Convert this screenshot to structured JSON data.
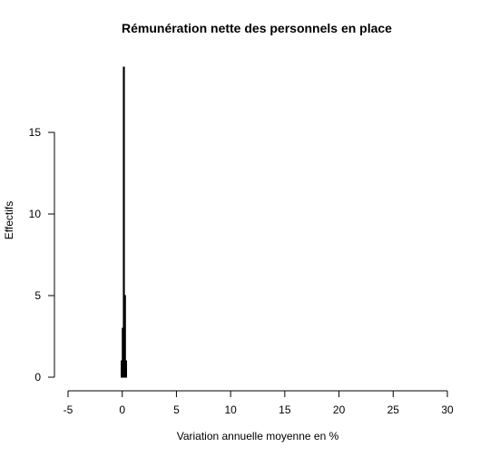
{
  "chart_data": {
    "type": "bar",
    "title": "Rémunération nette des personnels en place",
    "xlabel": "Variation annuelle moyenne en %",
    "ylabel": "Effectifs",
    "xlim": [
      -5,
      30
    ],
    "ylim": [
      0,
      19
    ],
    "x_ticks": [
      -5,
      0,
      5,
      10,
      15,
      20,
      25,
      30
    ],
    "y_ticks": [
      0,
      5,
      10,
      15
    ],
    "grid": false,
    "bin_width": 0.1,
    "bins": [
      {
        "x0": -0.1,
        "x1": 0.0,
        "count": 1
      },
      {
        "x0": 0.0,
        "x1": 0.1,
        "count": 3
      },
      {
        "x0": 0.1,
        "x1": 0.2,
        "count": 19
      },
      {
        "x0": 0.2,
        "x1": 0.3,
        "count": 5
      },
      {
        "x0": 0.3,
        "x1": 0.4,
        "count": 1
      }
    ]
  }
}
